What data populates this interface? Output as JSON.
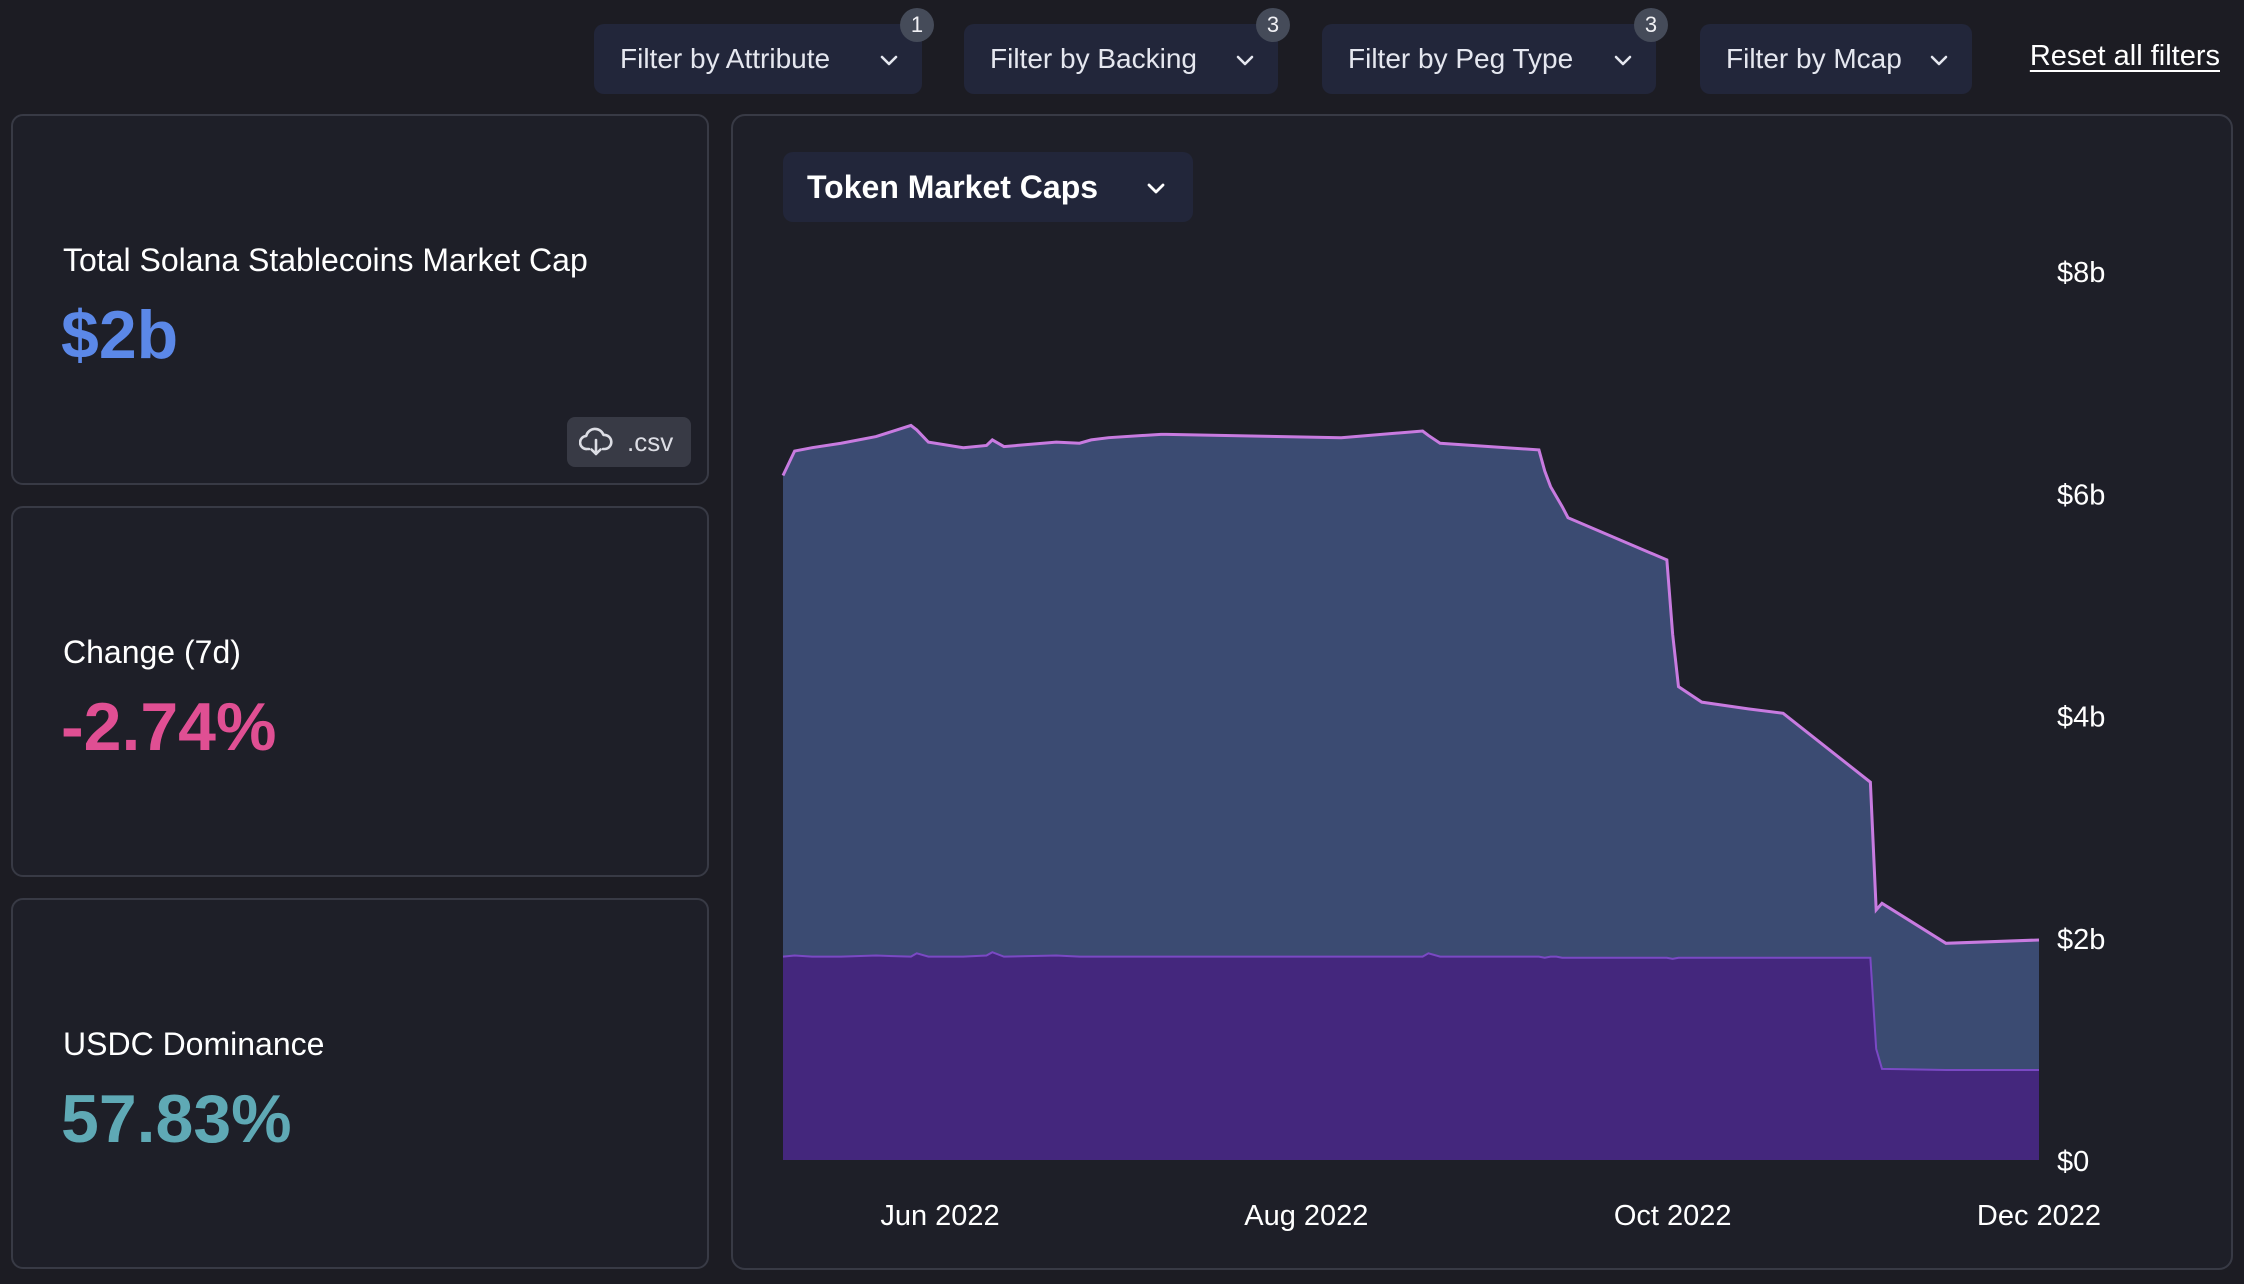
{
  "filters": [
    {
      "label": "Filter by Attribute",
      "badge": "1"
    },
    {
      "label": "Filter by Backing",
      "badge": "3"
    },
    {
      "label": "Filter by Peg Type",
      "badge": "3"
    },
    {
      "label": "Filter by Mcap",
      "badge": ""
    }
  ],
  "reset_label": "Reset all filters",
  "cards": {
    "total": {
      "label": "Total Solana Stablecoins Market Cap",
      "value": "$2b",
      "color": "#5b88e8",
      "csv_label": ".csv"
    },
    "change": {
      "label": "Change (7d)",
      "value": "-2.74%",
      "color": "#e04f93"
    },
    "dominance": {
      "label": "USDC Dominance",
      "value": "57.83%",
      "color": "#5fa9b5"
    }
  },
  "chart_selector": {
    "label": "Token Market Caps",
    "icon": "chevron-down-icon"
  },
  "colors": {
    "top_area": "#3b4b72",
    "bottom_area": "#44277d",
    "line_top": "#c87be0",
    "line_bottom": "#7a49c4"
  },
  "chart_data": {
    "type": "area",
    "stacked": true,
    "x_ticks": [
      "Jun 2022",
      "Aug 2022",
      "Oct 2022",
      "Dec 2022"
    ],
    "y_ticks": [
      "$0",
      "$2b",
      "$4b",
      "$6b",
      "$8b"
    ],
    "ylim": [
      0,
      8
    ],
    "xlim": [
      0,
      216
    ],
    "x_tick_positions": [
      27,
      90,
      153,
      216
    ],
    "series": [
      {
        "x": [
          0,
          2,
          5,
          10,
          16,
          22,
          23,
          25,
          31,
          35,
          36,
          38,
          47,
          51,
          53,
          56,
          65,
          66,
          96,
          110,
          111,
          113,
          130,
          131,
          132,
          133,
          134,
          135,
          152,
          153,
          154,
          158,
          166,
          172,
          187,
          188,
          189,
          200,
          216
        ],
        "y": [
          1.83,
          1.84,
          1.83,
          1.83,
          1.84,
          1.83,
          1.86,
          1.83,
          1.83,
          1.84,
          1.87,
          1.83,
          1.84,
          1.83,
          1.83,
          1.83,
          1.83,
          1.83,
          1.83,
          1.83,
          1.86,
          1.83,
          1.83,
          1.82,
          1.83,
          1.83,
          1.82,
          1.82,
          1.82,
          1.81,
          1.82,
          1.82,
          1.82,
          1.82,
          1.82,
          1.0,
          0.82,
          0.81,
          0.81
        ]
      },
      {
        "x": [
          0,
          2,
          5,
          10,
          16,
          22,
          23,
          25,
          31,
          35,
          36,
          38,
          47,
          51,
          53,
          56,
          65,
          66,
          96,
          110,
          111,
          113,
          130,
          131,
          132,
          133,
          134,
          135,
          152,
          153,
          154,
          158,
          166,
          172,
          187,
          188,
          189,
          200,
          216
        ],
        "y": [
          4.33,
          4.54,
          4.58,
          4.62,
          4.67,
          4.78,
          4.71,
          4.63,
          4.58,
          4.59,
          4.61,
          4.59,
          4.62,
          4.62,
          4.65,
          4.67,
          4.7,
          4.7,
          4.67,
          4.73,
          4.66,
          4.62,
          4.56,
          4.38,
          4.23,
          4.14,
          4.06,
          3.96,
          3.58,
          2.92,
          2.44,
          2.3,
          2.24,
          2.2,
          1.58,
          1.25,
          1.49,
          1.14,
          1.17
        ]
      }
    ]
  }
}
